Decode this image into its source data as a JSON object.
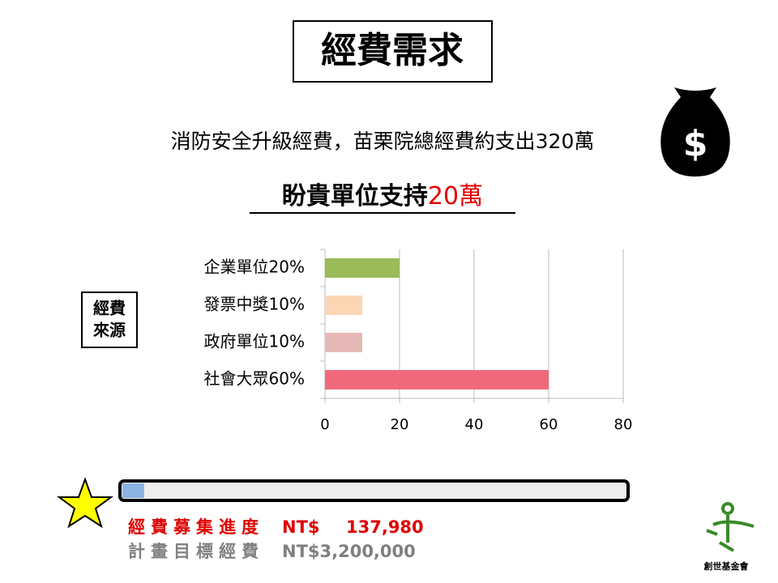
{
  "title": "經費需求",
  "subtitle": "消防安全升級經費，苗栗院總經費約支出320萬",
  "headline": {
    "text": "盼貴單位支持",
    "amount": "20萬"
  },
  "side_box": [
    "經費",
    "來源"
  ],
  "chart_data": {
    "type": "bar",
    "orientation": "horizontal",
    "categories": [
      "企業單位20%",
      "發票中獎10%",
      "政府單位10%",
      "社會大眾60%"
    ],
    "values": [
      20,
      10,
      10,
      60
    ],
    "colors": [
      "#9bbb59",
      "#fcd5b5",
      "#e6b9b8",
      "#f0697a"
    ],
    "xlim": [
      0,
      80
    ],
    "xticks": [
      0,
      20,
      40,
      60,
      80
    ],
    "grid": true
  },
  "progress": {
    "raised_label": "經費募集進度",
    "currency": "NT$",
    "raised": {
      "value": 137980,
      "label": "137,980"
    },
    "target_label": "計畫目標經費",
    "target": {
      "value": 3200000,
      "label": "NT$3,200,000"
    }
  },
  "logo": "創世基金會"
}
